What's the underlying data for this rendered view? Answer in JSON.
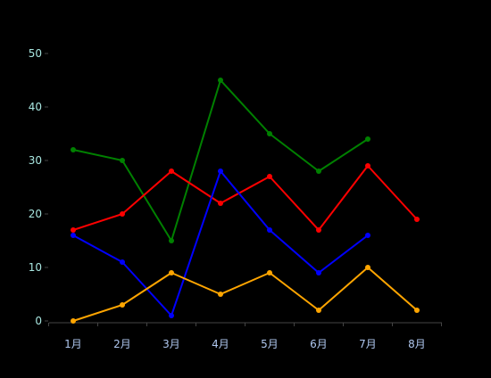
{
  "chart_data": {
    "type": "line",
    "categories": [
      "1月",
      "2月",
      "3月",
      "4月",
      "5月",
      "6月",
      "7月",
      "8月"
    ],
    "ylim": [
      0,
      50
    ],
    "yticks": [
      0,
      10,
      20,
      30,
      40,
      50
    ],
    "grid": false,
    "legend": "none",
    "series": [
      {
        "color": "#008000",
        "values": [
          32,
          30,
          15,
          45,
          35,
          28,
          34,
          null
        ]
      },
      {
        "color": "#ff0000",
        "values": [
          17,
          20,
          28,
          22,
          27,
          17,
          29,
          19
        ]
      },
      {
        "color": "#0000ff",
        "values": [
          16,
          11,
          1,
          28,
          17,
          9,
          16,
          null
        ]
      },
      {
        "color": "#ffa500",
        "values": [
          0,
          3,
          9,
          5,
          9,
          2,
          10,
          2
        ]
      }
    ],
    "colors": {
      "background": "#000000",
      "ytick_label": "#a8e6e0",
      "xtick_label": "#b0c8f0",
      "axis": "#444444"
    }
  }
}
